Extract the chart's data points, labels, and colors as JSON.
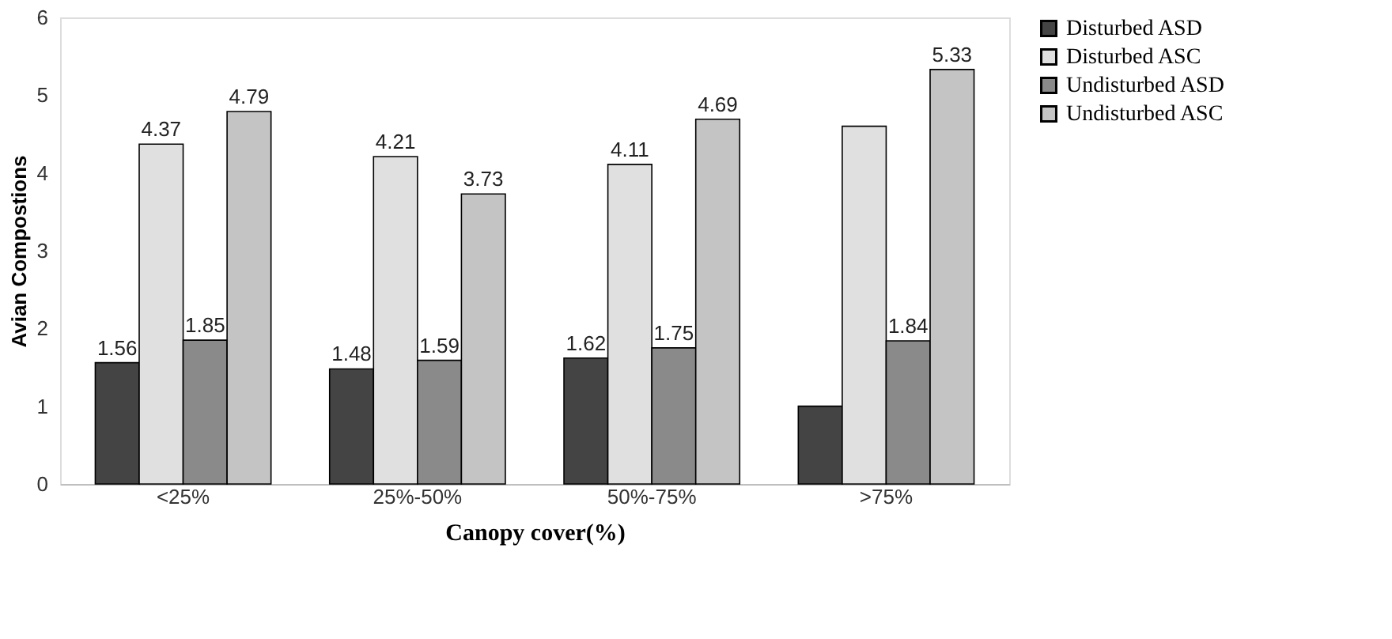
{
  "chart_data": {
    "type": "bar",
    "xlabel": "Canopy cover(%)",
    "ylabel": "Avian Compostions",
    "categories": [
      "<25%",
      "25%-50%",
      "50%-75%",
      ">75%"
    ],
    "series": [
      {
        "name": "Disturbed ASD",
        "color": "#444444",
        "values": [
          1.56,
          1.48,
          1.62,
          1.0
        ],
        "value_labels": [
          "1.56",
          "1.48",
          "1.62",
          null
        ]
      },
      {
        "name": "Disturbed ASC",
        "color": "#e0e0e0",
        "values": [
          4.37,
          4.21,
          4.11,
          4.6
        ],
        "value_labels": [
          "4.37",
          "4.21",
          "4.11",
          null
        ]
      },
      {
        "name": "Undisturbed ASD",
        "color": "#8a8a8a",
        "values": [
          1.85,
          1.59,
          1.75,
          1.84
        ],
        "value_labels": [
          "1.85",
          "1.59",
          "1.75",
          "1.84"
        ]
      },
      {
        "name": "Undisturbed ASC",
        "color": "#c4c4c4",
        "values": [
          4.79,
          3.73,
          4.69,
          5.33
        ],
        "value_labels": [
          "4.79",
          "3.73",
          "4.69",
          "5.33"
        ]
      }
    ],
    "ylim": [
      0,
      6
    ],
    "yticks": [
      0,
      1,
      2,
      3,
      4,
      5,
      6
    ],
    "grid": false,
    "legend": "top right"
  }
}
